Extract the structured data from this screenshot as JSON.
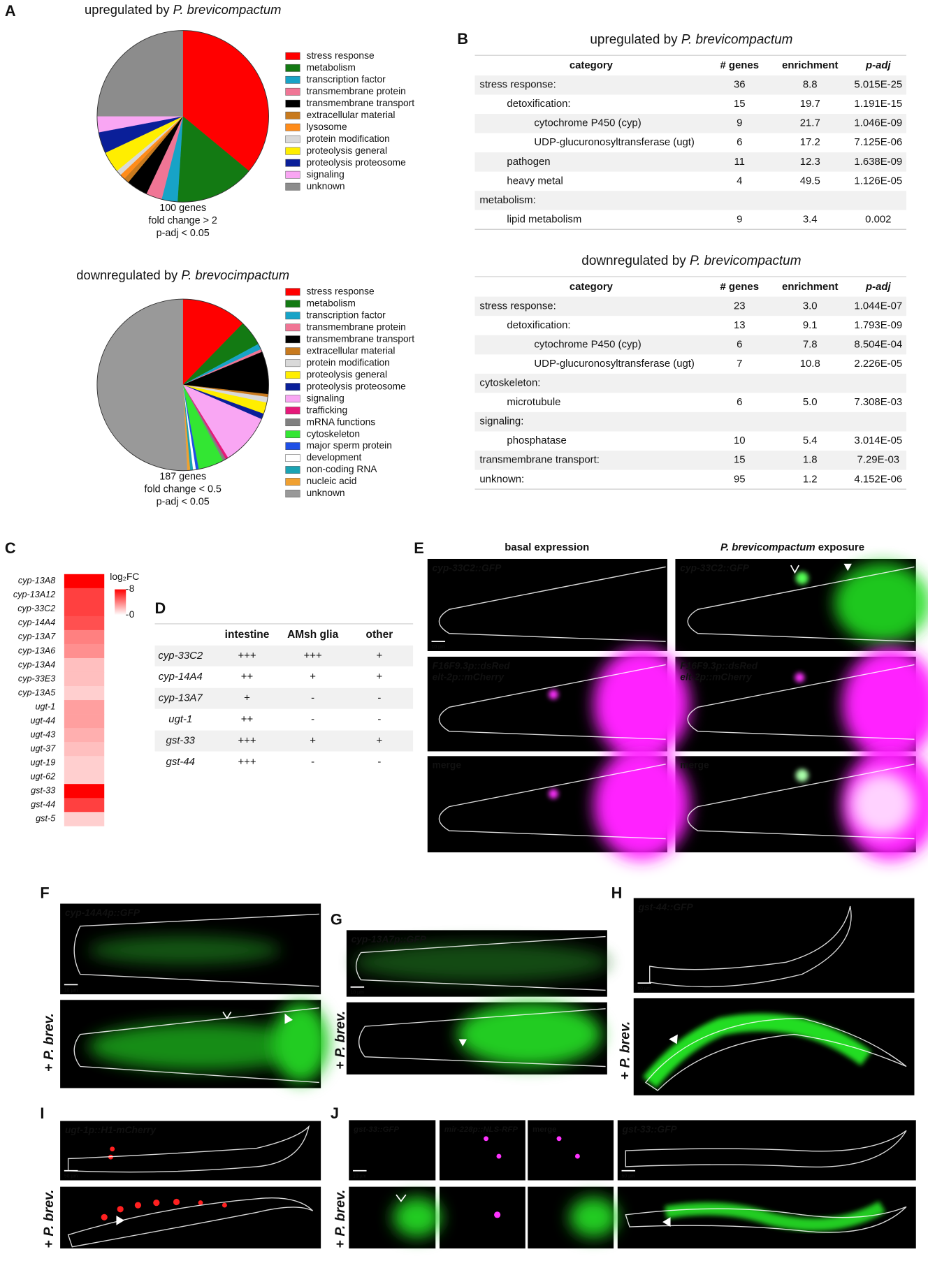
{
  "chart_data": [
    {
      "type": "pie",
      "letter": "A",
      "title": [
        "upregulated by ",
        "P. brevicompactum"
      ],
      "caption": [
        "100 genes",
        "fold change > 2",
        "p-adj < 0.05"
      ],
      "categories": [
        "stress response",
        "metabolism",
        "transcription factor",
        "transmembrane protein",
        "transmembrane transport",
        "extracellular material",
        "lysosome",
        "protein modification",
        "proteolysis general",
        "proteolysis proteosome",
        "signaling",
        "unknown"
      ],
      "values": [
        36,
        15,
        3,
        3,
        4,
        1,
        1,
        1,
        4,
        4,
        3,
        25
      ],
      "colors": [
        "#ff0000",
        "#137a13",
        "#17a3c7",
        "#f07595",
        "#000000",
        "#c87a1e",
        "#ff8c1a",
        "#d9d9d9",
        "#ffee00",
        "#0a1f99",
        "#f9a6f3",
        "#8c8c8c"
      ]
    },
    {
      "type": "pie",
      "title": [
        "downregulated by ",
        "P. brevocimpactum"
      ],
      "caption": [
        "187 genes",
        "fold change < 0.5",
        "p-adj < 0.05"
      ],
      "categories": [
        "stress response",
        "metabolism",
        "transcription factor",
        "transmembrane protein",
        "transmembrane transport",
        "extracellular material",
        "protein modification",
        "proteolysis general",
        "proteolysis proteosome",
        "signaling",
        "trafficking",
        "mRNA functions",
        "cytoskeleton",
        "major sperm protein",
        "development",
        "non-coding RNA",
        "nucleic acid",
        "unknown"
      ],
      "values": [
        23,
        9,
        2,
        1,
        15,
        1,
        2,
        4,
        2,
        18,
        1,
        1,
        9,
        1,
        1,
        1,
        1,
        95
      ],
      "colors": [
        "#ff0000",
        "#137a13",
        "#17a3c7",
        "#f07595",
        "#000000",
        "#c87a1e",
        "#d9d9d9",
        "#ffee00",
        "#0a1f99",
        "#f9a6f3",
        "#e6197a",
        "#808080",
        "#33e633",
        "#1f4fe6",
        "#ffffff",
        "#1aa3b3",
        "#f0a030",
        "#999999"
      ]
    },
    {
      "type": "heatmap",
      "letter": "C",
      "colorbar_label": "log₂FC",
      "categories": [
        "cyp-13A8",
        "cyp-13A12",
        "cyp-33C2",
        "cyp-14A4",
        "cyp-13A7",
        "cyp-13A6",
        "cyp-13A4",
        "cyp-33E3",
        "cyp-13A5",
        "ugt-1",
        "ugt-44",
        "ugt-43",
        "ugt-37",
        "ugt-19",
        "ugt-62",
        "gst-33",
        "gst-44",
        "gst-5"
      ],
      "values": [
        8,
        6,
        6,
        5.5,
        4,
        3.5,
        2,
        2,
        1.5,
        3,
        3,
        2.5,
        2,
        1.5,
        1.5,
        8,
        6,
        1.5
      ],
      "clim": [
        0,
        8
      ],
      "cticks": [
        8,
        0
      ],
      "color": "#ff0000"
    }
  ],
  "panel_b": {
    "letter": "B",
    "tables": [
      {
        "title": [
          "upregulated by ",
          "P. brevicompactum"
        ],
        "header": [
          "category",
          "# genes",
          "enrichment",
          "p-adj"
        ],
        "rows": [
          {
            "cells": [
              "stress response:",
              "36",
              "8.8",
              "5.015E-25"
            ],
            "children": [
              {
                "cells": [
                  "detoxification:",
                  "15",
                  "19.7",
                  "1.191E-15"
                ],
                "children": [
                  {
                    "cells": [
                      "cytochrome P450 (cyp)",
                      "9",
                      "21.7",
                      "1.046E-09"
                    ]
                  },
                  {
                    "cells": [
                      "UDP-glucuronosyltransferase (ugt)",
                      "6",
                      "17.2",
                      "7.125E-06"
                    ]
                  }
                ]
              },
              {
                "cells": [
                  "pathogen",
                  "11",
                  "12.3",
                  "1.638E-09"
                ]
              },
              {
                "cells": [
                  "heavy metal",
                  "4",
                  "49.5",
                  "1.126E-05"
                ]
              }
            ]
          },
          {
            "cells": [
              "metabolism:"
            ],
            "children": [
              {
                "cells": [
                  "lipid metabolism",
                  "9",
                  "3.4",
                  "0.002"
                ]
              }
            ]
          }
        ]
      },
      {
        "title": [
          "downregulated by ",
          "P. brevicompactum"
        ],
        "header": [
          "category",
          "# genes",
          "enrichment",
          "p-adj"
        ],
        "rows": [
          {
            "cells": [
              "stress response:",
              "23",
              "3.0",
              "1.044E-07"
            ],
            "children": [
              {
                "cells": [
                  "detoxification:",
                  "13",
                  "9.1",
                  "1.793E-09"
                ],
                "children": [
                  {
                    "cells": [
                      "cytochrome P450 (cyp)",
                      "6",
                      "7.8",
                      "8.504E-04"
                    ]
                  },
                  {
                    "cells": [
                      "UDP-glucuronosyltransferase (ugt)",
                      "7",
                      "10.8",
                      "2.226E-05"
                    ]
                  }
                ]
              }
            ]
          },
          {
            "cells": [
              "cytoskeleton:"
            ],
            "children": [
              {
                "cells": [
                  "microtubule",
                  "6",
                  "5.0",
                  "7.308E-03"
                ]
              }
            ]
          },
          {
            "cells": [
              "signaling:"
            ],
            "children": [
              {
                "cells": [
                  "phosphatase",
                  "10",
                  "5.4",
                  "3.014E-05"
                ]
              }
            ]
          },
          {
            "cells": [
              "transmembrane transport:",
              "15",
              "1.8",
              "7.29E-03"
            ]
          },
          {
            "cells": [
              "unknown:",
              "95",
              "1.2",
              "4.152E-06"
            ]
          }
        ]
      }
    ]
  },
  "panel_d": {
    "letter": "D",
    "header": [
      "intestine",
      "AMsh glia",
      "other"
    ],
    "rows": [
      [
        "cyp-33C2",
        "+++",
        "+++",
        "+"
      ],
      [
        "cyp-14A4",
        "++",
        "+",
        "+"
      ],
      [
        "cyp-13A7",
        "+",
        "-",
        "-"
      ],
      [
        "ugt-1",
        "++",
        "-",
        "-"
      ],
      [
        "gst-33",
        "+++",
        "+",
        "+"
      ],
      [
        "gst-44",
        "+++",
        "-",
        "-"
      ]
    ]
  },
  "image_panels": [
    {
      "letter": "E",
      "headings": [
        [
          "basal expression"
        ],
        [
          "P. brevicompactum",
          " exposure"
        ]
      ],
      "images": [
        {
          "labels": [
            {
              "text": "cyp-33C2::GFP",
              "color": "#33ff33"
            }
          ],
          "scale_bar": "10 µm"
        },
        {
          "labels": [
            {
              "text": "cyp-33C2::GFP",
              "color": "#33ff33"
            }
          ]
        },
        {
          "labels": [
            {
              "text": "F16F9.3p::dsRed",
              "color": "#ff33ff"
            },
            {
              "text": "elt-2p::mCherry",
              "color": "#ff33ff"
            }
          ]
        },
        {
          "labels": [
            {
              "text": "F16F9.3p::dsRed",
              "color": "#ff33ff"
            },
            {
              "text": "elt-2p::mCherry",
              "color": "#ff33ff"
            }
          ]
        },
        {
          "labels": [
            {
              "text": "merge",
              "color": "#ffffff"
            }
          ]
        },
        {
          "labels": [
            {
              "text": "merge",
              "color": "#ffffff"
            }
          ]
        }
      ]
    },
    {
      "letter": "F",
      "side_label": [
        "+ ",
        "P. brev."
      ],
      "images": [
        {
          "labels": [
            {
              "text": "cyp-14A4p::GFP",
              "color": "#33ff33"
            }
          ],
          "scale_bar": "10 µm"
        },
        {
          "labels": []
        }
      ]
    },
    {
      "letter": "G",
      "side_label": [
        "+ ",
        "P. brev."
      ],
      "images": [
        {
          "labels": [
            {
              "text": "cyp-13A7p::GFP",
              "color": "#33ff33"
            }
          ],
          "scale_bar": "10 µm"
        },
        {
          "labels": []
        }
      ]
    },
    {
      "letter": "H",
      "side_label": [
        "+ ",
        "P. brev."
      ],
      "images": [
        {
          "labels": [
            {
              "text": "gst-44::GFP",
              "color": "#33ff33"
            }
          ],
          "scale_bar": "50 µm"
        },
        {
          "labels": []
        }
      ]
    },
    {
      "letter": "I",
      "side_label": [
        "+ ",
        "P. brev."
      ],
      "images": [
        {
          "labels": [
            {
              "text": "ugt-1p::H1-mCherry",
              "color": "#ff2020"
            }
          ],
          "scale_bar": "50 µm"
        },
        {
          "labels": []
        }
      ]
    },
    {
      "letter": "J",
      "side_label": [
        "+ ",
        "P. brev."
      ],
      "images": [
        {
          "labels": [
            {
              "text": "gst-33::GFP",
              "color": "#33ff33"
            }
          ],
          "scale_bar": "10 µm"
        },
        {
          "labels": [
            {
              "text": "mir-228p::NLS-RFP",
              "color": "#ff33ff"
            }
          ]
        },
        {
          "labels": [
            {
              "text": "merge",
              "color": "#ffffff"
            }
          ]
        },
        {
          "labels": [
            {
              "text": "gst-33::GFP",
              "color": "#33ff33"
            }
          ],
          "scale_bar": "50 µm"
        },
        {
          "labels": []
        },
        {
          "labels": []
        },
        {
          "labels": []
        },
        {
          "labels": []
        }
      ]
    }
  ]
}
